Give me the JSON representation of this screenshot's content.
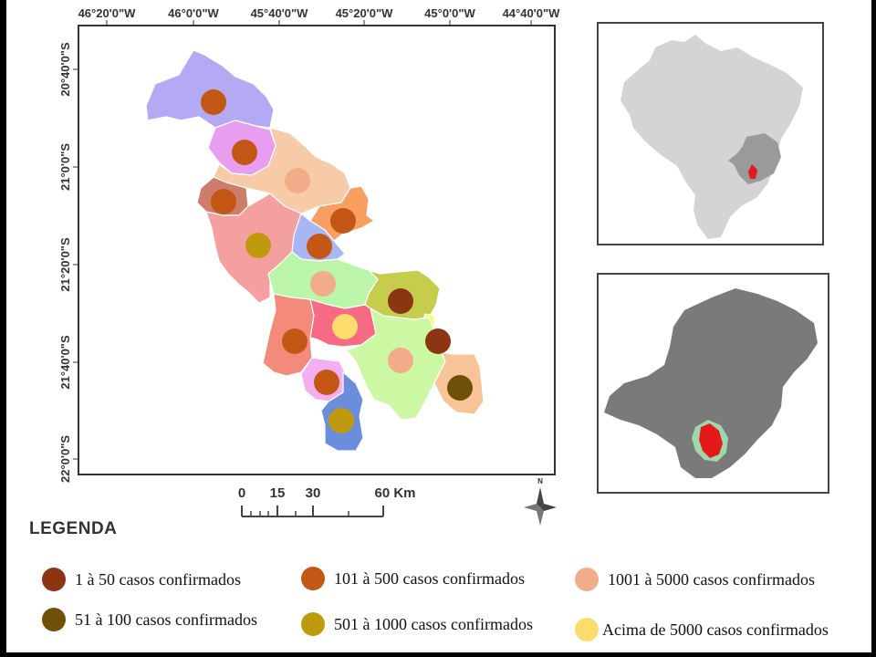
{
  "map": {
    "longitude_ticks": [
      "46°20'0\"W",
      "46°0'0\"W",
      "45°40'0\"W",
      "45°20'0\"W",
      "45°0'0\"W",
      "44°40'0\"W"
    ],
    "latitude_ticks": [
      "20°40'0\"S",
      "21°0'0\"S",
      "21°20'0\"S",
      "21°40'0\"S",
      "22°0'0\"S"
    ],
    "scale_bar": {
      "labels": [
        "0",
        "15",
        "30",
        "60 Km"
      ]
    },
    "north_arrow_label": "N"
  },
  "legend": {
    "heading": "LEGENDA",
    "items": [
      {
        "label": "1 à 50 casos confirmados",
        "color": "#8b3512"
      },
      {
        "label": "101 à 500 casos confirmados",
        "color": "#c55716"
      },
      {
        "label": "1001 à 5000 casos confirmados",
        "color": "#f1ad8a"
      },
      {
        "label": "51 à 100 casos confirmados",
        "color": "#6f5008"
      },
      {
        "label": "501 à 1000 casos confirmados",
        "color": "#c09a0e"
      },
      {
        "label": "Acima de 5000 casos confirmados",
        "color": "#fddc6e"
      }
    ]
  }
}
